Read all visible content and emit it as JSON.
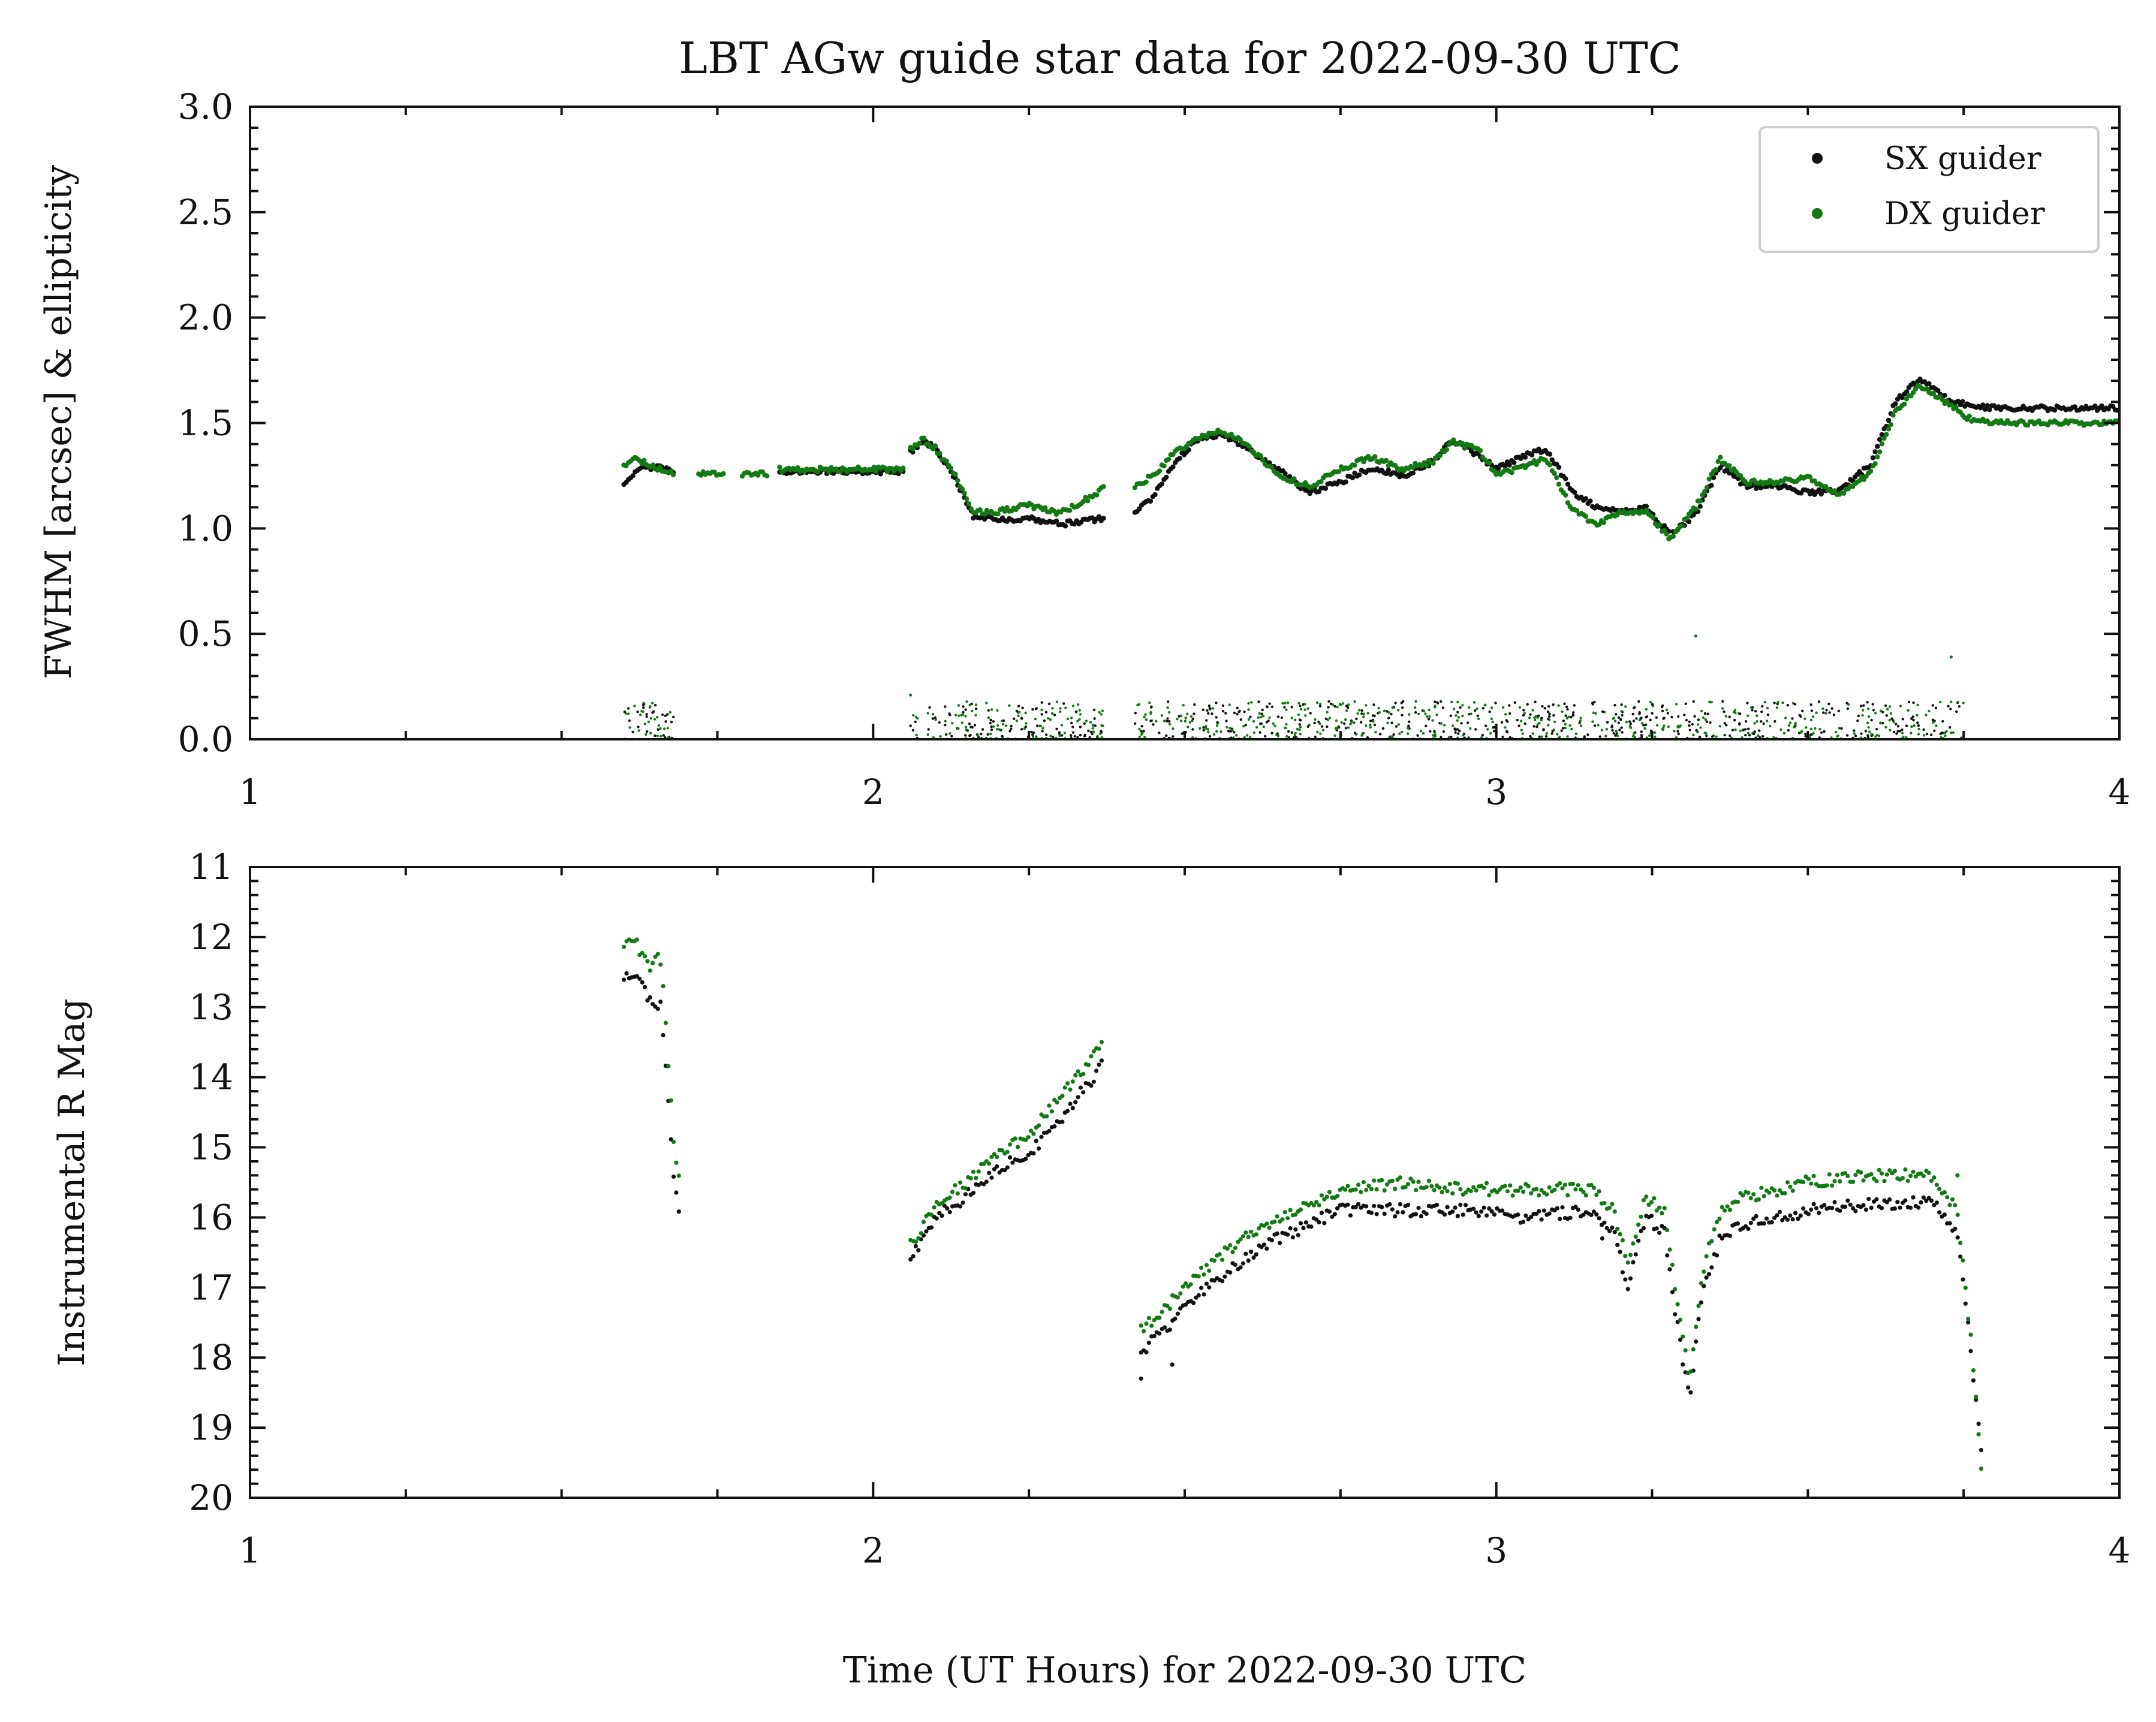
{
  "colors": {
    "sx": "#111111",
    "dx": "#137a13",
    "frame": "#111111",
    "legend_border": "#cccccc"
  },
  "chart_data": {
    "type": "scatter",
    "title": "LBT AGw guide star data for 2022-09-30 UTC",
    "xlabel": "Time (UT Hours) for 2022-09-30 UTC",
    "legend": {
      "placement": "top-right",
      "entries": [
        "SX guider",
        "DX guider"
      ]
    },
    "grid": false,
    "panels": [
      {
        "id": "fwhm",
        "ylabel": "FWHM [arcsec] & ellipticity",
        "xlim": [
          1,
          4
        ],
        "ylim": [
          0,
          3
        ],
        "y_inverted": false,
        "xticks": [
          "1",
          "2",
          "3",
          "4"
        ],
        "yticks": [
          "0.0",
          "0.5",
          "1.0",
          "1.5",
          "2.0",
          "2.5",
          "3.0"
        ],
        "series": [
          {
            "name": "SX guider",
            "role": "FWHM",
            "segments": [
              [
                [
                  1.6,
                  1.2
                ],
                [
                  1.62,
                  1.28
                ],
                [
                  1.65,
                  1.29
                ],
                [
                  1.68,
                  1.27
                ]
              ],
              [
                [
                  1.85,
                  1.27
                ],
                [
                  2.05,
                  1.27
                ]
              ],
              [
                [
                  2.06,
                  1.36
                ],
                [
                  2.08,
                  1.42
                ],
                [
                  2.1,
                  1.38
                ],
                [
                  2.13,
                  1.25
                ],
                [
                  2.16,
                  1.06
                ],
                [
                  2.2,
                  1.04
                ],
                [
                  2.25,
                  1.05
                ],
                [
                  2.3,
                  1.02
                ],
                [
                  2.35,
                  1.04
                ],
                [
                  2.37,
                  1.05
                ]
              ],
              [
                [
                  2.42,
                  1.08
                ],
                [
                  2.45,
                  1.15
                ],
                [
                  2.48,
                  1.3
                ],
                [
                  2.52,
                  1.42
                ],
                [
                  2.56,
                  1.45
                ],
                [
                  2.6,
                  1.38
                ],
                [
                  2.65,
                  1.28
                ],
                [
                  2.7,
                  1.17
                ],
                [
                  2.75,
                  1.22
                ],
                [
                  2.8,
                  1.29
                ],
                [
                  2.85,
                  1.25
                ],
                [
                  2.9,
                  1.32
                ],
                [
                  2.93,
                  1.42
                ],
                [
                  2.97,
                  1.35
                ],
                [
                  3.0,
                  1.28
                ],
                [
                  3.05,
                  1.35
                ],
                [
                  3.08,
                  1.38
                ],
                [
                  3.12,
                  1.18
                ],
                [
                  3.16,
                  1.1
                ],
                [
                  3.2,
                  1.08
                ],
                [
                  3.24,
                  1.1
                ],
                [
                  3.28,
                  0.97
                ],
                [
                  3.32,
                  1.07
                ],
                [
                  3.36,
                  1.3
                ],
                [
                  3.4,
                  1.2
                ],
                [
                  3.45,
                  1.2
                ],
                [
                  3.5,
                  1.17
                ],
                [
                  3.55,
                  1.18
                ],
                [
                  3.6,
                  1.3
                ],
                [
                  3.64,
                  1.6
                ],
                [
                  3.68,
                  1.71
                ],
                [
                  3.72,
                  1.62
                ],
                [
                  3.76,
                  1.58
                ],
                [
                  3.81,
                  1.57
                ],
                [
                  4.0,
                  1.57
                ]
              ]
            ]
          },
          {
            "name": "DX guider",
            "role": "FWHM",
            "segments": [
              [
                [
                  1.6,
                  1.3
                ],
                [
                  1.62,
                  1.33
                ],
                [
                  1.65,
                  1.29
                ],
                [
                  1.68,
                  1.26
                ]
              ],
              [
                [
                  1.72,
                  1.26
                ],
                [
                  1.76,
                  1.26
                ]
              ],
              [
                [
                  1.79,
                  1.26
                ],
                [
                  1.83,
                  1.26
                ]
              ],
              [
                [
                  1.85,
                  1.28
                ],
                [
                  2.05,
                  1.28
                ]
              ],
              [
                [
                  2.06,
                  1.38
                ],
                [
                  2.08,
                  1.42
                ],
                [
                  2.1,
                  1.38
                ],
                [
                  2.13,
                  1.26
                ],
                [
                  2.16,
                  1.08
                ],
                [
                  2.2,
                  1.08
                ],
                [
                  2.25,
                  1.11
                ],
                [
                  2.3,
                  1.07
                ],
                [
                  2.35,
                  1.15
                ],
                [
                  2.37,
                  1.19
                ]
              ],
              [
                [
                  2.42,
                  1.2
                ],
                [
                  2.45,
                  1.25
                ],
                [
                  2.48,
                  1.35
                ],
                [
                  2.52,
                  1.43
                ],
                [
                  2.56,
                  1.46
                ],
                [
                  2.6,
                  1.4
                ],
                [
                  2.65,
                  1.25
                ],
                [
                  2.7,
                  1.2
                ],
                [
                  2.75,
                  1.28
                ],
                [
                  2.8,
                  1.34
                ],
                [
                  2.85,
                  1.28
                ],
                [
                  2.9,
                  1.32
                ],
                [
                  2.93,
                  1.41
                ],
                [
                  2.97,
                  1.38
                ],
                [
                  3.0,
                  1.25
                ],
                [
                  3.05,
                  1.3
                ],
                [
                  3.08,
                  1.33
                ],
                [
                  3.12,
                  1.1
                ],
                [
                  3.16,
                  1.02
                ],
                [
                  3.2,
                  1.08
                ],
                [
                  3.24,
                  1.08
                ],
                [
                  3.28,
                  0.95
                ],
                [
                  3.32,
                  1.1
                ],
                [
                  3.36,
                  1.33
                ],
                [
                  3.4,
                  1.22
                ],
                [
                  3.45,
                  1.22
                ],
                [
                  3.5,
                  1.24
                ],
                [
                  3.55,
                  1.16
                ],
                [
                  3.6,
                  1.26
                ],
                [
                  3.64,
                  1.55
                ],
                [
                  3.68,
                  1.68
                ],
                [
                  3.72,
                  1.6
                ],
                [
                  3.76,
                  1.52
                ],
                [
                  3.81,
                  1.5
                ],
                [
                  4.0,
                  1.5
                ]
              ]
            ]
          }
        ],
        "ellipticity": {
          "spans": [
            [
              1.6,
              1.68
            ],
            [
              2.06,
              2.37
            ],
            [
              2.42,
              3.75
            ]
          ],
          "range": [
            0.0,
            0.18
          ],
          "outliers": [
            [
              3.32,
              0.49
            ],
            [
              3.73,
              0.39
            ],
            [
              2.06,
              0.21
            ]
          ]
        }
      },
      {
        "id": "mag",
        "ylabel": "Instrumental R Mag",
        "xlim": [
          1,
          4
        ],
        "ylim": [
          11,
          20
        ],
        "y_inverted": true,
        "xticks": [
          "1",
          "2",
          "3",
          "4"
        ],
        "yticks": [
          "11",
          "12",
          "13",
          "14",
          "15",
          "16",
          "17",
          "18",
          "19",
          "20"
        ],
        "series": [
          {
            "name": "SX guider",
            "segments": [
              [
                [
                  1.6,
                  12.6
                ],
                [
                  1.62,
                  12.5
                ],
                [
                  1.64,
                  12.9
                ],
                [
                  1.66,
                  13.0
                ],
                [
                  1.67,
                  14.2
                ],
                [
                  1.68,
                  15.5
                ],
                [
                  1.69,
                  15.9
                ]
              ],
              [
                [
                  2.06,
                  16.6
                ],
                [
                  2.1,
                  16.0
                ],
                [
                  2.15,
                  15.7
                ],
                [
                  2.2,
                  15.3
                ],
                [
                  2.25,
                  15.1
                ],
                [
                  2.3,
                  14.6
                ],
                [
                  2.37,
                  13.8
                ]
              ],
              [
                [
                  2.43,
                  17.9
                ],
                [
                  2.47,
                  17.6
                ],
                [
                  2.52,
                  17.1
                ],
                [
                  2.58,
                  16.7
                ],
                [
                  2.65,
                  16.3
                ],
                [
                  2.75,
                  15.9
                ],
                [
                  2.85,
                  15.9
                ],
                [
                  2.95,
                  15.9
                ],
                [
                  3.05,
                  16.0
                ],
                [
                  3.15,
                  15.9
                ],
                [
                  3.19,
                  16.2
                ],
                [
                  3.21,
                  17.0
                ],
                [
                  3.24,
                  16.0
                ],
                [
                  3.27,
                  16.2
                ],
                [
                  3.29,
                  17.5
                ],
                [
                  3.31,
                  18.6
                ],
                [
                  3.33,
                  17.1
                ],
                [
                  3.36,
                  16.3
                ],
                [
                  3.4,
                  16.1
                ],
                [
                  3.5,
                  15.9
                ],
                [
                  3.6,
                  15.8
                ],
                [
                  3.7,
                  15.8
                ],
                [
                  3.74,
                  16.2
                ],
                [
                  3.76,
                  17.8
                ],
                [
                  3.78,
                  19.4
                ]
              ]
            ],
            "outliers": [
              [
                2.43,
                18.3
              ],
              [
                2.48,
                18.1
              ],
              [
                3.17,
                16.3
              ]
            ]
          },
          {
            "name": "DX guider",
            "segments": [
              [
                [
                  1.6,
                  12.1
                ],
                [
                  1.62,
                  12.1
                ],
                [
                  1.64,
                  12.4
                ],
                [
                  1.66,
                  12.3
                ],
                [
                  1.67,
                  13.6
                ],
                [
                  1.68,
                  14.9
                ],
                [
                  1.69,
                  15.5
                ]
              ],
              [
                [
                  2.06,
                  16.4
                ],
                [
                  2.1,
                  15.8
                ],
                [
                  2.15,
                  15.5
                ],
                [
                  2.2,
                  15.1
                ],
                [
                  2.25,
                  14.8
                ],
                [
                  2.3,
                  14.3
                ],
                [
                  2.37,
                  13.5
                ]
              ],
              [
                [
                  2.43,
                  17.6
                ],
                [
                  2.47,
                  17.3
                ],
                [
                  2.52,
                  16.8
                ],
                [
                  2.58,
                  16.4
                ],
                [
                  2.65,
                  16.0
                ],
                [
                  2.75,
                  15.6
                ],
                [
                  2.85,
                  15.5
                ],
                [
                  2.95,
                  15.6
                ],
                [
                  3.05,
                  15.6
                ],
                [
                  3.15,
                  15.6
                ],
                [
                  3.19,
                  15.9
                ],
                [
                  3.21,
                  16.7
                ],
                [
                  3.24,
                  15.7
                ],
                [
                  3.27,
                  15.9
                ],
                [
                  3.29,
                  17.2
                ],
                [
                  3.31,
                  18.3
                ],
                [
                  3.33,
                  16.8
                ],
                [
                  3.36,
                  15.9
                ],
                [
                  3.4,
                  15.7
                ],
                [
                  3.5,
                  15.5
                ],
                [
                  3.6,
                  15.4
                ],
                [
                  3.7,
                  15.4
                ],
                [
                  3.74,
                  15.9
                ],
                [
                  3.76,
                  17.6
                ],
                [
                  3.78,
                  19.7
                ]
              ]
            ],
            "outliers": [
              [
                3.74,
                15.4
              ]
            ]
          }
        ]
      }
    ]
  }
}
